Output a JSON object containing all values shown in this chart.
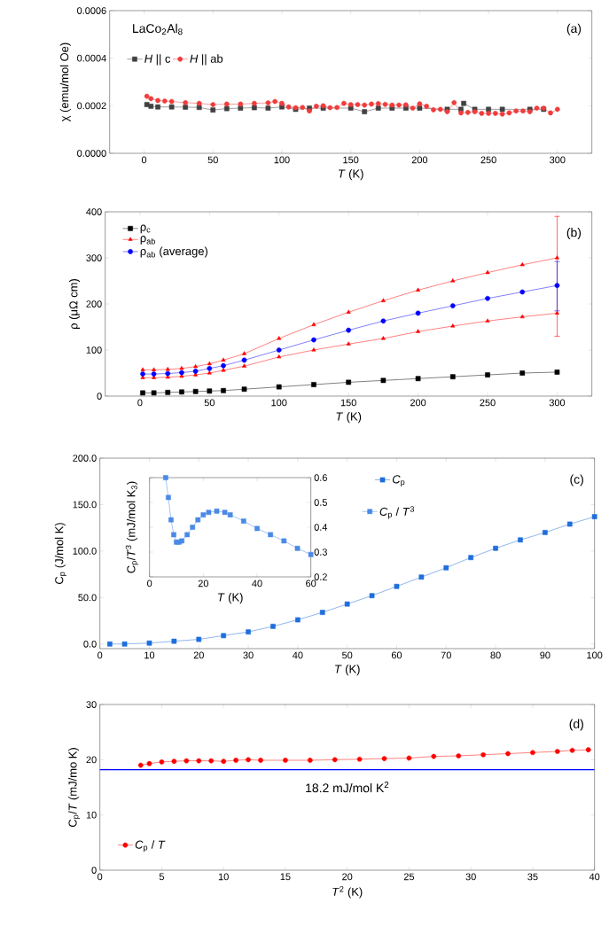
{
  "chart_data": [
    {
      "type": "line",
      "xlabel": "*T* (K)",
      "ylabel": "χ (emu/mol Oe)",
      "legend_title": "LaCo$_{2}$Al$_{8}$",
      "annotations": [
        "(a)"
      ],
      "legend": "top left",
      "xlim": [
        -25,
        325
      ],
      "xticks": [
        0,
        50,
        100,
        150,
        200,
        250,
        300
      ],
      "ylim": [
        0,
        0.0006
      ],
      "yticks": [
        {
          "value": 0,
          "label": "0.0000"
        },
        {
          "value": 0.0002,
          "label": "0.0002"
        },
        {
          "value": 0.0004,
          "label": "0.0004"
        },
        {
          "value": 0.0006,
          "label": "0.0006"
        }
      ],
      "series": [
        {
          "name": "*H*  || c",
          "color": "#404040",
          "marker": "square",
          "x": [
            2,
            5,
            10,
            20,
            30,
            40,
            50,
            60,
            70,
            80,
            90,
            100,
            110,
            120,
            130,
            140,
            150,
            155,
            160,
            170,
            180,
            190,
            200,
            210,
            220,
            230,
            232,
            240,
            250,
            260,
            270,
            280,
            290
          ],
          "values": [
            0.000205,
            0.000198,
            0.000195,
            0.000195,
            0.000194,
            0.000193,
            0.000182,
            0.000188,
            0.00019,
            0.000192,
            0.00019,
            0.000195,
            0.000185,
            0.00019,
            0.00019,
            null,
            0.00019,
            null,
            0.000175,
            0.00019,
            0.00019,
            0.00019,
            0.00019,
            null,
            0.000185,
            0.000185,
            0.00021,
            0.000185,
            0.000185,
            0.000185,
            null,
            0.000185,
            0.000185
          ]
        },
        {
          "name": "*H*  || ab",
          "color": "#f03c3c",
          "marker": "circle",
          "x": [
            2,
            5,
            10,
            15,
            20,
            30,
            40,
            50,
            60,
            70,
            80,
            90,
            95,
            100,
            105,
            110,
            115,
            120,
            125,
            130,
            135,
            140,
            145,
            150,
            155,
            160,
            165,
            170,
            175,
            180,
            185,
            190,
            195,
            200,
            205,
            210,
            215,
            220,
            225,
            230,
            235,
            240,
            245,
            250,
            255,
            260,
            265,
            270,
            275,
            280,
            285,
            290,
            295,
            300
          ],
          "values": [
            0.00024,
            0.00023,
            0.000222,
            0.00022,
            0.000218,
            0.000213,
            0.00021,
            0.000205,
            0.000207,
            0.000207,
            0.00021,
            0.000212,
            0.000218,
            0.00021,
            0.000195,
            0.000192,
            0.000193,
            0.000178,
            0.000198,
            0.0002,
            0.000192,
            0.000193,
            0.00021,
            0.000205,
            0.000205,
            0.000203,
            0.000207,
            0.000209,
            0.000206,
            0.000203,
            0.000203,
            0.000204,
            0.00019,
            0.000208,
            0.000198,
            0.000183,
            0.000185,
            0.000175,
            0.000213,
            0.00017,
            0.000172,
            0.000175,
            0.000168,
            0.000168,
            0.000168,
            0.000165,
            0.00017,
            0.000178,
            0.000178,
            0.000175,
            0.00019,
            0.00019,
            0.00017,
            0.000185
          ]
        }
      ]
    },
    {
      "type": "line",
      "xlabel": "*T* (K)",
      "ylabel": "ρ (μΩ cm)",
      "annotations": [
        "(b)"
      ],
      "legend": "top left",
      "xlim": [
        -25,
        325
      ],
      "xticks": [
        0,
        50,
        100,
        150,
        200,
        250,
        300
      ],
      "ylim": [
        0,
        400
      ],
      "yticks": [
        0,
        100,
        200,
        300,
        400
      ],
      "series": [
        {
          "name": "ρ$_{c}$",
          "color": "#000000",
          "marker": "square",
          "x": [
            2,
            10,
            20,
            30,
            40,
            50,
            60,
            75,
            100,
            125,
            150,
            175,
            200,
            225,
            250,
            275,
            300
          ],
          "values": [
            7,
            7,
            8,
            9,
            10,
            11,
            12,
            15,
            20,
            25,
            30,
            34,
            38,
            42,
            46,
            50,
            52
          ]
        },
        {
          "name": "ρ$_{ab}$",
          "color": "#ff0000",
          "marker": "triangle",
          "x": [
            2,
            10,
            20,
            30,
            40,
            50,
            60,
            75,
            100,
            125,
            150,
            175,
            200,
            225,
            250,
            275,
            300
          ],
          "values": [
            57,
            57,
            58,
            60,
            64,
            70,
            78,
            92,
            125,
            155,
            182,
            207,
            230,
            250,
            268,
            285,
            300
          ],
          "errors": [
            null,
            null,
            null,
            null,
            null,
            null,
            null,
            null,
            null,
            null,
            null,
            null,
            null,
            null,
            null,
            null,
            [
              130,
              390
            ]
          ]
        },
        {
          "color": "#ff0000",
          "marker": "triangle",
          "x": [
            2,
            10,
            20,
            30,
            40,
            50,
            60,
            75,
            100,
            125,
            150,
            175,
            200,
            225,
            250,
            275,
            300
          ],
          "values": [
            40,
            40,
            41,
            43,
            46,
            50,
            56,
            65,
            85,
            100,
            113,
            125,
            140,
            152,
            163,
            172,
            180
          ]
        },
        {
          "name": "ρ$_{ab}$ (average)",
          "color": "#0000ff",
          "marker": "circle",
          "x": [
            2,
            10,
            20,
            30,
            40,
            50,
            60,
            75,
            100,
            125,
            150,
            175,
            200,
            225,
            250,
            275,
            300
          ],
          "values": [
            48,
            48,
            49,
            51,
            54,
            60,
            66,
            78,
            100,
            122,
            143,
            163,
            180,
            196,
            212,
            226,
            240
          ],
          "errors": [
            null,
            null,
            null,
            null,
            null,
            null,
            null,
            null,
            null,
            null,
            null,
            null,
            null,
            null,
            null,
            null,
            [
              185,
              292
            ]
          ]
        }
      ]
    },
    {
      "type": "line",
      "xlabel": "*T* (K)",
      "ylabel": "C$_{p}$ (J/mol K)",
      "annotations": [
        "(c)"
      ],
      "legend": "top right",
      "xlim": [
        0,
        100
      ],
      "xticks": [
        0,
        10,
        20,
        30,
        40,
        50,
        60,
        70,
        80,
        90,
        100
      ],
      "ylim": [
        -5,
        200
      ],
      "yticks": [
        {
          "value": 0,
          "label": "0.0"
        },
        {
          "value": 50,
          "label": "50.0"
        },
        {
          "value": 100,
          "label": "100.0"
        },
        {
          "value": 150,
          "label": "150.0"
        },
        {
          "value": 200,
          "label": "200.0"
        }
      ],
      "series": [
        {
          "name": "*C*$_{p}$",
          "color": "#1e6edc",
          "marker": "square",
          "x": [
            2,
            5,
            10,
            15,
            20,
            25,
            30,
            35,
            40,
            45,
            50,
            55,
            60,
            65,
            70,
            75,
            80,
            85,
            90,
            95,
            100
          ],
          "values": [
            0,
            0,
            1,
            3,
            5,
            9,
            13,
            19,
            26,
            34,
            43,
            52,
            62,
            72,
            82,
            93,
            103,
            112,
            120,
            129,
            137
          ]
        }
      ]
    },
    {
      "type": "line",
      "xlabel": "*T* (K)",
      "ylabel": "C$_{p}$/*T*$^{3}$ (mJ/mol K$_{3}$)",
      "legend": "right",
      "xlim": [
        0,
        60
      ],
      "xticks": [
        0,
        20,
        40,
        60
      ],
      "ylim": [
        0.2,
        0.6
      ],
      "yticks": [
        0.2,
        0.3,
        0.4,
        0.5,
        0.6
      ],
      "series": [
        {
          "name": "*C*$_{p}$ / *T*$^{3}$",
          "color": "#4a8ae6",
          "marker": "square",
          "x": [
            6,
            7,
            8,
            9,
            10,
            11,
            12,
            14,
            16,
            18,
            20,
            22,
            25,
            28,
            30,
            35,
            40,
            45,
            50,
            55,
            60
          ],
          "values": [
            0.6,
            0.52,
            0.43,
            0.37,
            0.34,
            0.34,
            0.345,
            0.37,
            0.4,
            0.43,
            0.45,
            0.46,
            0.465,
            0.46,
            0.45,
            0.425,
            0.395,
            0.37,
            0.345,
            0.315,
            0.29
          ]
        }
      ]
    },
    {
      "type": "line",
      "xlabel": "*T*$^{2}$ (K)",
      "ylabel": "C$_{p}$/*T* (mJ/mo K)",
      "annotations": [
        "(d)"
      ],
      "legend": "bottom left",
      "xlim": [
        0,
        40
      ],
      "xticks": [
        0,
        5,
        10,
        15,
        20,
        25,
        30,
        35,
        40
      ],
      "ylim": [
        0,
        30
      ],
      "yticks": [
        0,
        10,
        20,
        30
      ],
      "ref_lines": [
        {
          "axis": "y",
          "value": 18.2,
          "label": "18.2 mJ/mol K$^{2}$",
          "color": "#0000ff"
        }
      ],
      "series": [
        {
          "name": "*C*$_{p}$ / *T*",
          "color": "#ff0000",
          "marker": "circle",
          "x": [
            3.3,
            4,
            5,
            6,
            7,
            8,
            9,
            10,
            11,
            12,
            13,
            15,
            17,
            19,
            21,
            23,
            25,
            27,
            29,
            31,
            33,
            35,
            37,
            38.2,
            39.5
          ],
          "values": [
            19,
            19.3,
            19.6,
            19.7,
            19.8,
            19.8,
            19.8,
            19.7,
            19.9,
            20,
            19.9,
            19.9,
            19.9,
            20,
            20.1,
            20.2,
            20.3,
            20.6,
            20.7,
            20.9,
            21.1,
            21.3,
            21.5,
            21.7,
            21.8
          ]
        }
      ]
    }
  ]
}
